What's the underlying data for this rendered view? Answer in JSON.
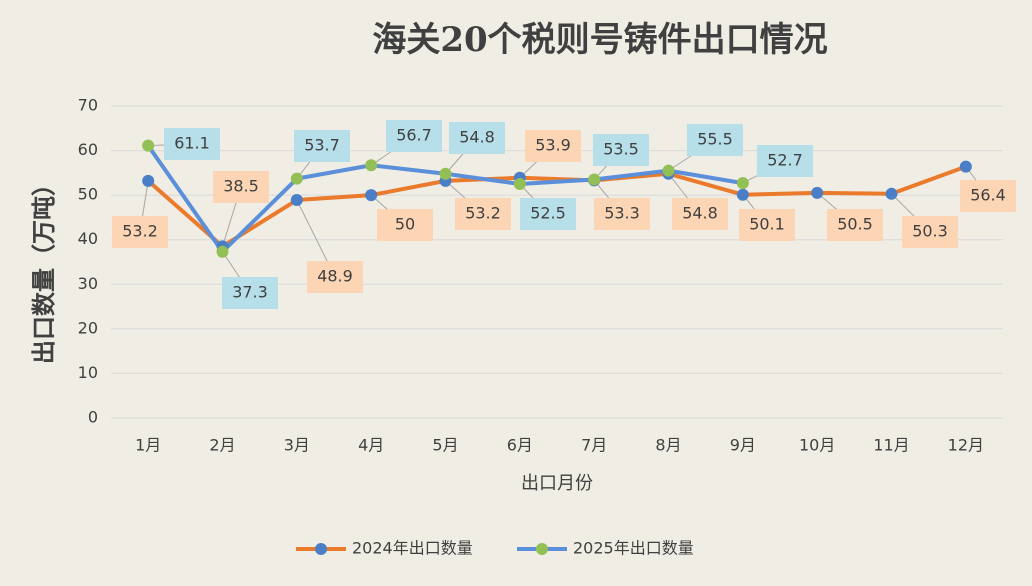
{
  "chart_data": {
    "type": "line",
    "title": "海关20个税则号铸件出口情况",
    "x_label": "出口月份",
    "y_label": "出口数量（万吨）",
    "categories": [
      "1月",
      "2月",
      "3月",
      "4月",
      "5月",
      "6月",
      "7月",
      "8月",
      "9月",
      "10月",
      "11月",
      "12月"
    ],
    "series": [
      {
        "name": "2024年出口数量",
        "color": "#ea7a2c",
        "marker_color": "#4a7fc8",
        "label_bg": "#fcd5b4",
        "values": [
          53.2,
          38.5,
          48.9,
          50,
          53.2,
          53.9,
          53.3,
          54.8,
          50.1,
          50.5,
          50.3,
          56.4
        ]
      },
      {
        "name": "2025年出口数量",
        "color": "#5b8fd9",
        "marker_color": "#92c054",
        "label_bg": "#b7dfea",
        "values": [
          61.1,
          37.3,
          53.7,
          56.7,
          54.8,
          52.5,
          53.5,
          55.5,
          52.7,
          null,
          null,
          null
        ]
      }
    ],
    "ylim": [
      0,
      70
    ],
    "yticks": [
      0,
      10,
      20,
      30,
      40,
      50,
      60,
      70
    ],
    "grid": true,
    "legend": "bottom"
  }
}
